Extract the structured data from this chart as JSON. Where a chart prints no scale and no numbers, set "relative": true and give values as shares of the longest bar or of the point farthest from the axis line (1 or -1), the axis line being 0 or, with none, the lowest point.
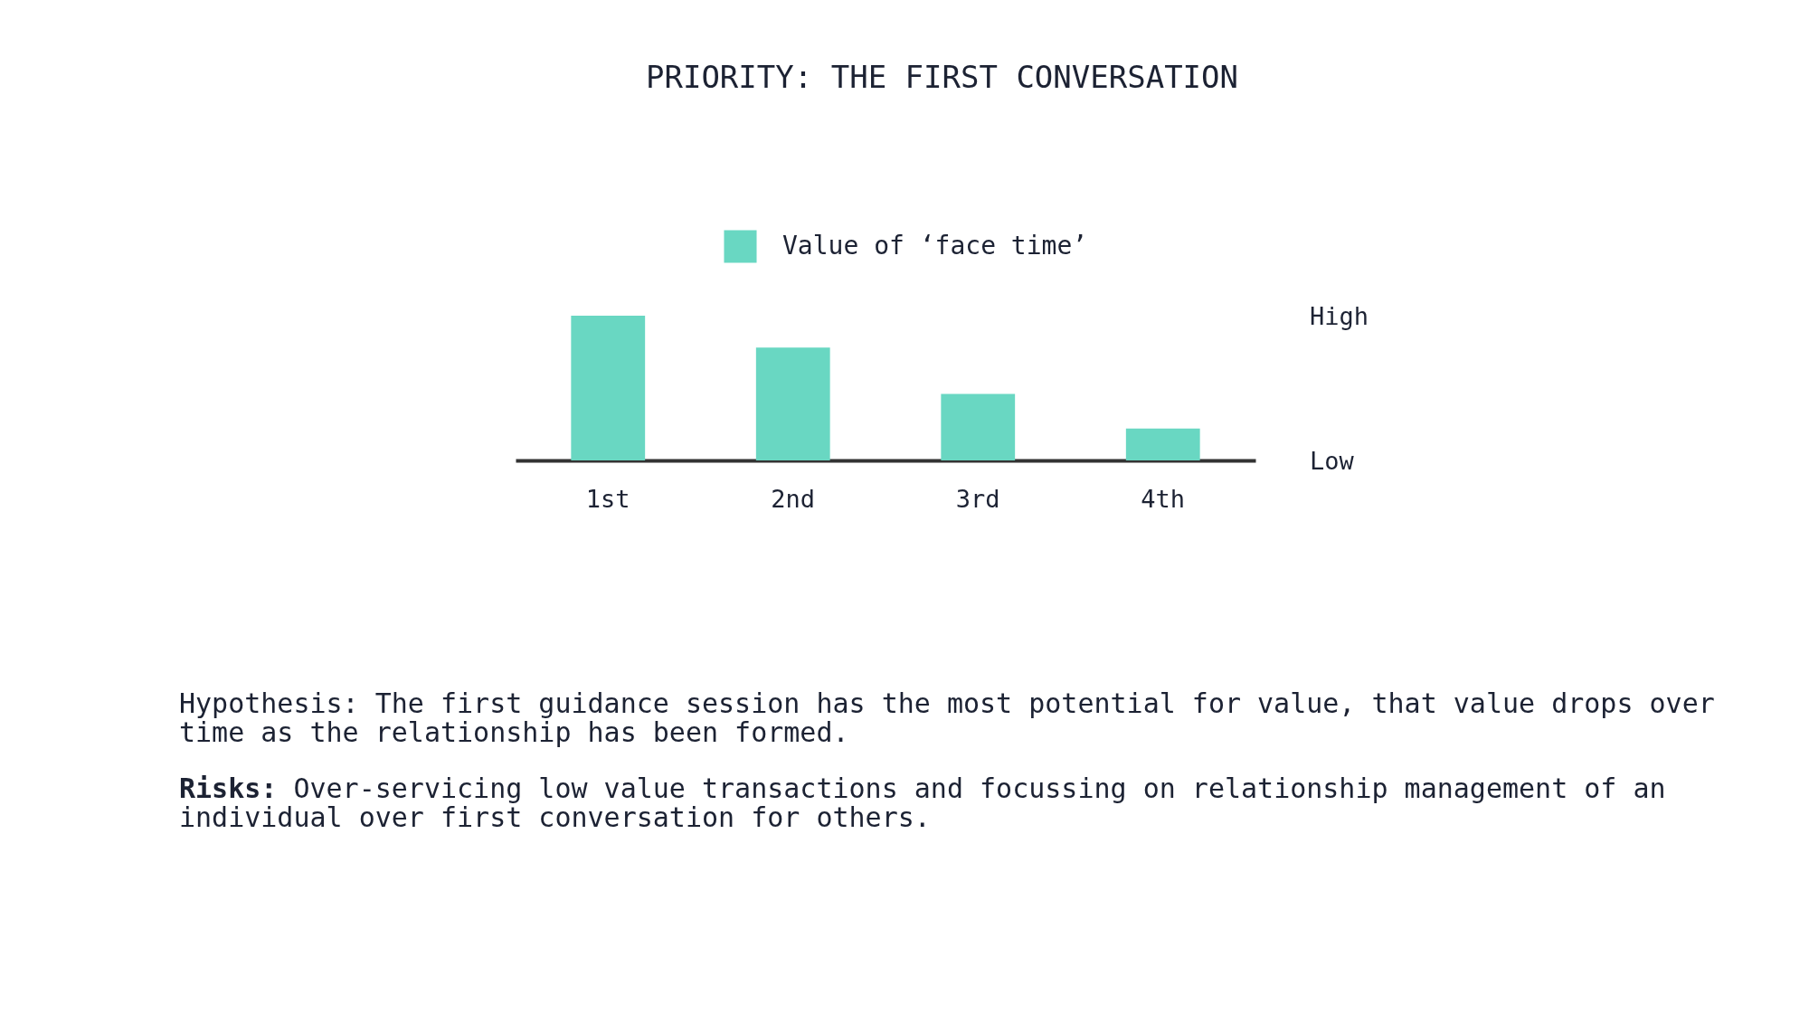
{
  "chart_data": {
    "type": "bar",
    "title": "PRIORITY: THE FIRST CONVERSATION",
    "categories": [
      "1st",
      "2nd",
      "3rd",
      "4th"
    ],
    "series": [
      {
        "name": "Value of ‘face time’",
        "color": "#69d7c2",
        "values": [
          1,
          0.78,
          0.46,
          0.22
        ]
      }
    ],
    "relative": true,
    "legend": "top",
    "annotations": [
      "High",
      "Low",
      "Hypothesis: The first guidance session has the most potential for value, that value drops over time as the relationship has been formed.",
      "Risks: Over-servicing low value transactions and focussing on relationship management of an individual over first conversation for others."
    ]
  }
}
